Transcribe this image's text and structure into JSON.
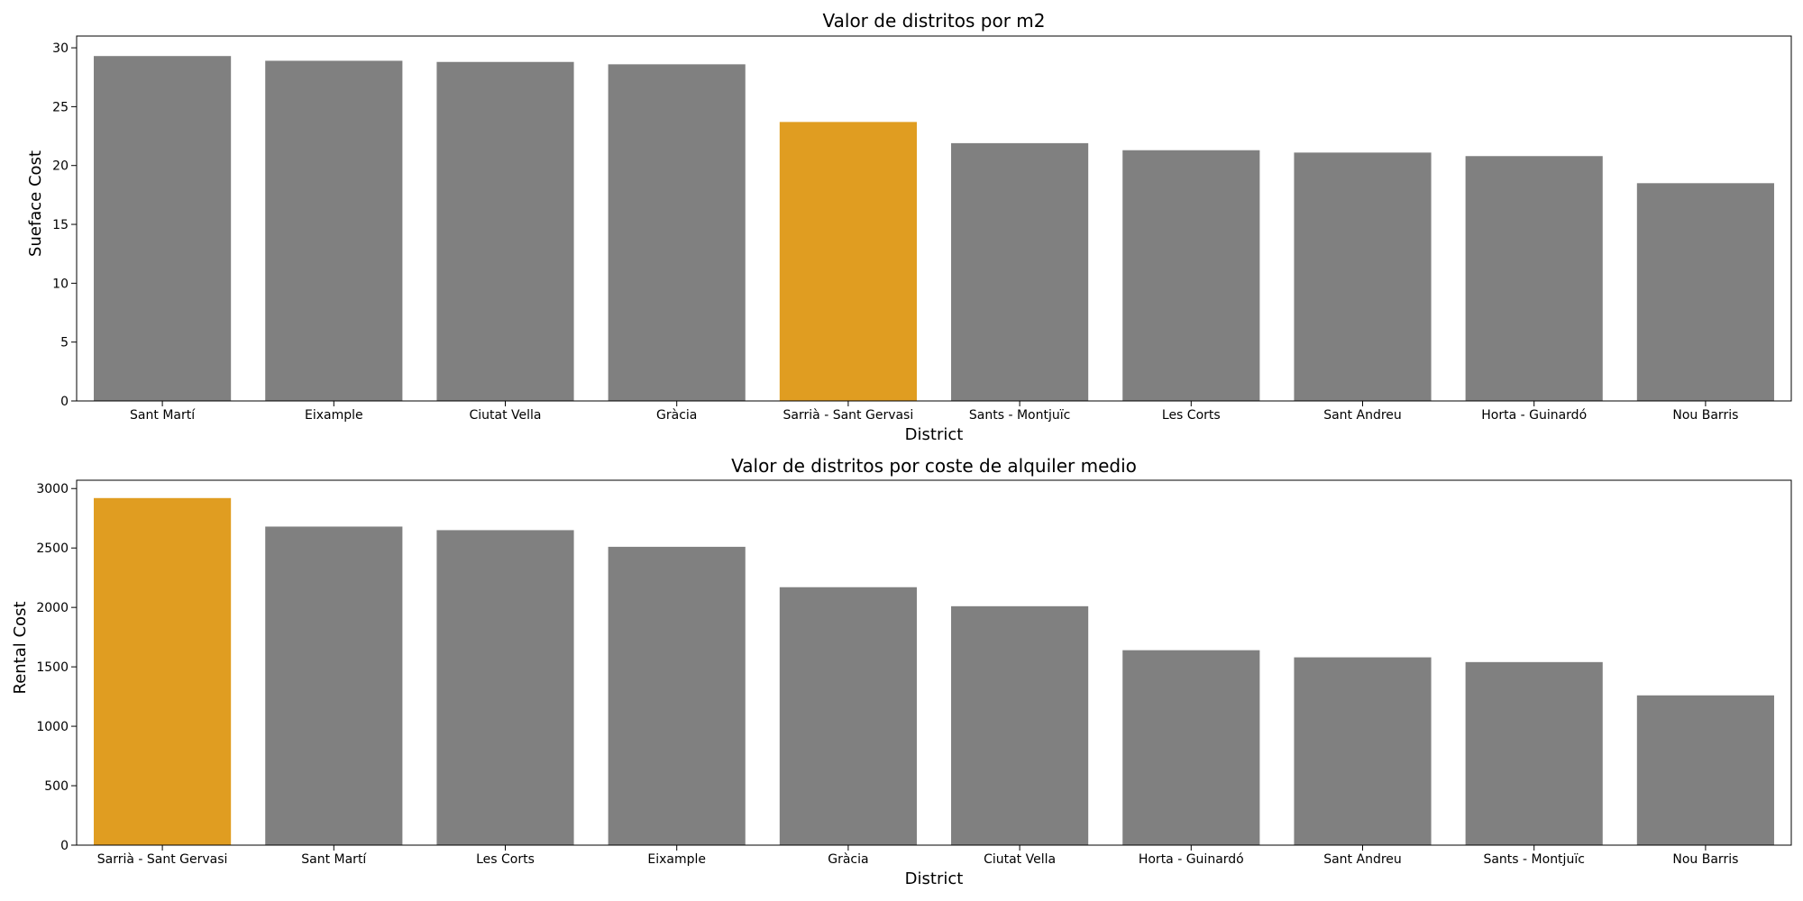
{
  "colors": {
    "default": "#808080",
    "highlight": "#e09d21"
  },
  "chart_data": [
    {
      "type": "bar",
      "title": "Valor de distritos por m2",
      "xlabel": "District",
      "ylabel": "Sueface Cost",
      "ylim": [
        0,
        31
      ],
      "yticks": [
        0,
        5,
        10,
        15,
        20,
        25,
        30
      ],
      "categories": [
        "Sant Martí",
        "Eixample",
        "Ciutat Vella",
        "Gràcia",
        "Sarrià - Sant Gervasi",
        "Sants - Montjuïc",
        "Les Corts",
        "Sant Andreu",
        "Horta - Guinardó",
        "Nou Barris"
      ],
      "values": [
        29.3,
        28.9,
        28.8,
        28.6,
        23.7,
        21.9,
        21.3,
        21.1,
        20.8,
        18.5
      ],
      "highlight": "Sarrià - Sant Gervasi"
    },
    {
      "type": "bar",
      "title": "Valor de distritos por coste de alquiler medio",
      "xlabel": "District",
      "ylabel": "Rental Cost",
      "ylim": [
        0,
        3070
      ],
      "yticks": [
        0,
        500,
        1000,
        1500,
        2000,
        2500,
        3000
      ],
      "categories": [
        "Sarrià - Sant Gervasi",
        "Sant Martí",
        "Les Corts",
        "Eixample",
        "Gràcia",
        "Ciutat Vella",
        "Horta - Guinardó",
        "Sant Andreu",
        "Sants - Montjuïc",
        "Nou Barris"
      ],
      "values": [
        2920,
        2680,
        2650,
        2510,
        2170,
        2010,
        1640,
        1580,
        1540,
        1260
      ],
      "highlight": "Sarrià - Sant Gervasi"
    }
  ]
}
